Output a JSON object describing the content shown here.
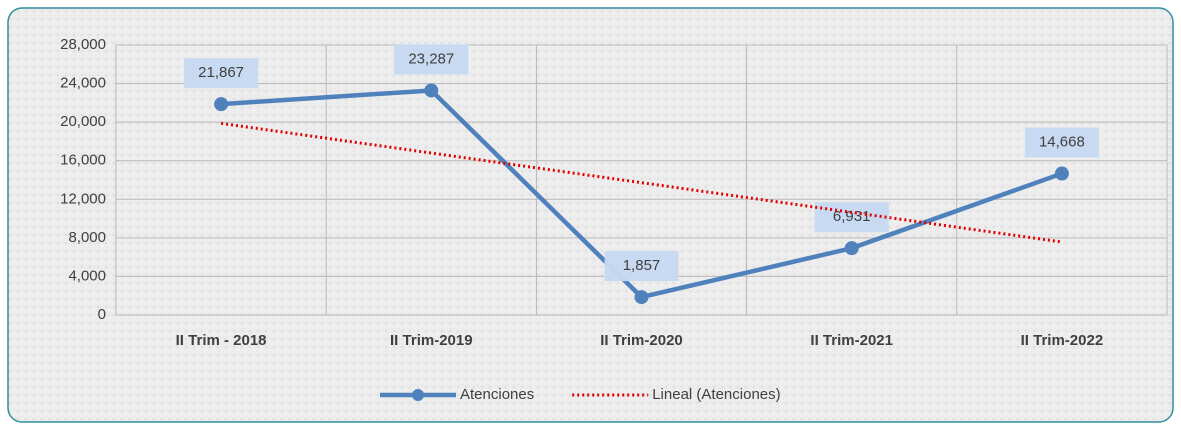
{
  "chart_data": {
    "type": "line",
    "categories": [
      "II Trim - 2018",
      "II Trim-2019",
      "II Trim-2020",
      "II Trim-2021",
      "II Trim-2022"
    ],
    "series": [
      {
        "name": "Atenciones",
        "color": "#4f81bd",
        "values": [
          21867,
          23287,
          1857,
          6931,
          14668
        ],
        "value_labels": [
          "21,867",
          "23,287",
          "1,857",
          "6,931",
          "14,668"
        ]
      },
      {
        "name": "Lineal (Atenciones)",
        "color": "#e00000",
        "style": "dotted",
        "values": [
          19872.8,
          16797.4,
          13722,
          10646.6,
          7571.2
        ]
      }
    ],
    "ylim": [
      0,
      28000
    ],
    "yticks": [
      0,
      {
        "value": 4000,
        "label": "4,000"
      },
      {
        "value": 8000,
        "label": "8,000"
      },
      {
        "value": 12000,
        "label": "12,000"
      },
      {
        "value": 16000,
        "label": "16,000"
      },
      {
        "value": 20000,
        "label": "20,000"
      },
      {
        "value": 24000,
        "label": "24,000"
      },
      {
        "value": 28000,
        "label": "28,000"
      }
    ],
    "grid": true,
    "legend": "bottom"
  }
}
